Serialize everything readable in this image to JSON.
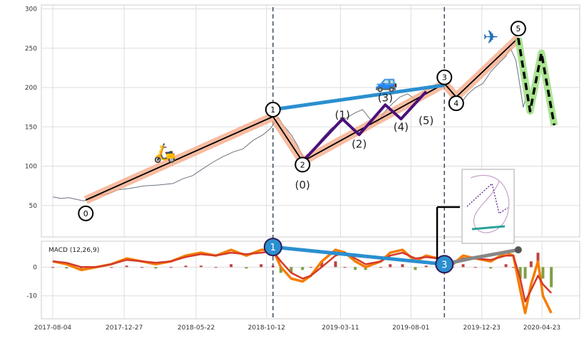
{
  "chart_data": [
    {
      "type": "line",
      "panel": "price",
      "yticks": [
        50,
        100,
        150,
        200,
        250,
        300
      ],
      "ylim": [
        10,
        305
      ],
      "grid": true,
      "series": [
        {
          "role": "price",
          "color": "#6b7280",
          "points": [
            [
              "2017-08-04",
              61
            ],
            [
              "2017-08-20",
              59
            ],
            [
              "2017-09-05",
              60
            ],
            [
              "2017-09-20",
              58
            ],
            [
              "2017-10-05",
              56
            ],
            [
              "2017-10-20",
              58
            ],
            [
              "2017-11-05",
              63
            ],
            [
              "2017-11-25",
              65
            ],
            [
              "2017-12-15",
              70
            ],
            [
              "2018-01-10",
              72
            ],
            [
              "2018-02-05",
              75
            ],
            [
              "2018-03-05",
              76
            ],
            [
              "2018-04-05",
              78
            ],
            [
              "2018-04-25",
              84
            ],
            [
              "2018-05-15",
              88
            ],
            [
              "2018-06-05",
              97
            ],
            [
              "2018-06-25",
              105
            ],
            [
              "2018-07-15",
              112
            ],
            [
              "2018-08-05",
              118
            ],
            [
              "2018-08-25",
              122
            ],
            [
              "2018-09-15",
              133
            ],
            [
              "2018-10-05",
              140
            ],
            [
              "2018-10-20",
              148
            ],
            [
              "2018-11-05",
              162
            ],
            [
              "2018-11-15",
              152
            ],
            [
              "2018-12-01",
              140
            ],
            [
              "2018-12-15",
              125
            ],
            [
              "2018-12-28",
              108
            ],
            [
              "2019-01-10",
              118
            ],
            [
              "2019-02-01",
              135
            ],
            [
              "2019-02-20",
              148
            ],
            [
              "2019-03-10",
              155
            ],
            [
              "2019-03-25",
              162
            ],
            [
              "2019-04-10",
              168
            ],
            [
              "2019-04-25",
              172
            ],
            [
              "2019-05-10",
              160
            ],
            [
              "2019-05-25",
              155
            ],
            [
              "2019-06-10",
              170
            ],
            [
              "2019-06-25",
              180
            ],
            [
              "2019-07-10",
              188
            ],
            [
              "2019-07-25",
              192
            ],
            [
              "2019-08-10",
              185
            ],
            [
              "2019-08-25",
              190
            ],
            [
              "2019-09-10",
              196
            ],
            [
              "2019-09-25",
              200
            ],
            [
              "2019-10-10",
              210
            ],
            [
              "2019-10-25",
              190
            ],
            [
              "2019-11-10",
              180
            ],
            [
              "2019-11-25",
              192
            ],
            [
              "2019-12-10",
              200
            ],
            [
              "2019-12-25",
              205
            ],
            [
              "2020-01-10",
              220
            ],
            [
              "2020-01-25",
              230
            ],
            [
              "2020-02-10",
              240
            ],
            [
              "2020-02-19",
              250
            ],
            [
              "2020-03-01",
              235
            ],
            [
              "2020-03-10",
              200
            ],
            [
              "2020-03-16",
              175
            ],
            [
              "2020-03-23",
              190
            ]
          ]
        },
        {
          "role": "elliott-wave",
          "color": "#000000",
          "halo_color": "#f4a582",
          "points": [
            [
              "2017-10-10",
              57
            ],
            [
              "2018-10-25",
              163
            ],
            [
              "2018-12-24",
              106
            ],
            [
              "2019-10-08",
              205
            ],
            [
              "2019-11-01",
              188
            ],
            [
              "2020-03-06",
              263
            ]
          ]
        },
        {
          "role": "sub-wave",
          "color": "#4b0f7a",
          "points": [
            [
              "2018-12-24",
              106
            ],
            [
              "2019-03-15",
              160
            ],
            [
              "2019-04-18",
              140
            ],
            [
              "2019-06-10",
              178
            ],
            [
              "2019-07-12",
              160
            ],
            [
              "2019-09-01",
              195
            ]
          ]
        },
        {
          "role": "divergence-link",
          "color": "#2b8fd0",
          "points": [
            [
              "2018-10-25",
              172
            ],
            [
              "2019-10-08",
              203
            ]
          ]
        },
        {
          "role": "correction-dashed",
          "color": "#000000",
          "halo_color": "#9be07f",
          "points": [
            [
              "2020-03-06",
              263
            ],
            [
              "2020-03-30",
              170
            ],
            [
              "2020-04-22",
              244
            ],
            [
              "2020-05-18",
              152
            ]
          ]
        }
      ],
      "wave_labels": [
        {
          "text": "0",
          "x": "2017-10-10",
          "y": 40,
          "circled": true
        },
        {
          "text": "1",
          "x": "2018-10-25",
          "y": 172,
          "circled": true
        },
        {
          "text": "2",
          "x": "2018-12-24",
          "y": 102,
          "circled": true
        },
        {
          "text": "3",
          "x": "2019-10-08",
          "y": 213,
          "circled": true
        },
        {
          "text": "4",
          "x": "2019-11-01",
          "y": 180,
          "circled": true
        },
        {
          "text": "5",
          "x": "2020-03-06",
          "y": 275,
          "circled": true
        },
        {
          "text": "(0)",
          "x": "2018-12-24",
          "y": 76,
          "circled": false
        },
        {
          "text": "(1)",
          "x": "2019-03-15",
          "y": 165,
          "circled": false
        },
        {
          "text": "(2)",
          "x": "2019-04-18",
          "y": 128,
          "circled": false
        },
        {
          "text": "(3)",
          "x": "2019-06-10",
          "y": 187,
          "circled": false
        },
        {
          "text": "(4)",
          "x": "2019-07-12",
          "y": 150,
          "circled": false
        },
        {
          "text": "(5)",
          "x": "2019-09-01",
          "y": 158,
          "circled": false
        }
      ],
      "icons": [
        {
          "name": "scooter-icon",
          "glyph": "🛵",
          "x": "2018-03-20",
          "y": 118
        },
        {
          "name": "car-icon",
          "glyph": "🚙",
          "x": "2019-06-12",
          "y": 208
        },
        {
          "name": "airplane-icon",
          "glyph": "✈",
          "x": "2020-01-10",
          "y": 265
        }
      ],
      "vlines": [
        "2018-10-25",
        "2019-10-08"
      ]
    },
    {
      "type": "line",
      "panel": "macd",
      "legend": "MACD (12,26,9)",
      "xticks": [
        "2017-08-04",
        "2017-12-27",
        "2018-05-22",
        "2018-10-12",
        "2019-03-11",
        "2019-08-01",
        "2019-12-23",
        "2020-04-23"
      ],
      "yticks": [
        0,
        -10
      ],
      "ylim": [
        -18,
        9
      ],
      "grid": true,
      "series": [
        {
          "role": "macd",
          "color": "#f57c00",
          "points": [
            [
              "2017-08-04",
              2
            ],
            [
              "2017-09-01",
              1
            ],
            [
              "2017-10-01",
              -1
            ],
            [
              "2017-11-01",
              0
            ],
            [
              "2017-12-01",
              1
            ],
            [
              "2018-01-01",
              3
            ],
            [
              "2018-02-01",
              2
            ],
            [
              "2018-03-01",
              1
            ],
            [
              "2018-04-01",
              2
            ],
            [
              "2018-05-01",
              4
            ],
            [
              "2018-06-01",
              5
            ],
            [
              "2018-07-01",
              4
            ],
            [
              "2018-08-01",
              6
            ],
            [
              "2018-09-01",
              4
            ],
            [
              "2018-10-01",
              6
            ],
            [
              "2018-10-25",
              6
            ],
            [
              "2018-11-10",
              0
            ],
            [
              "2018-12-01",
              -4
            ],
            [
              "2018-12-24",
              -5
            ],
            [
              "2019-01-10",
              -3
            ],
            [
              "2019-02-01",
              2
            ],
            [
              "2019-03-01",
              6
            ],
            [
              "2019-03-20",
              5
            ],
            [
              "2019-04-10",
              2
            ],
            [
              "2019-05-01",
              0
            ],
            [
              "2019-06-01",
              2
            ],
            [
              "2019-06-20",
              5
            ],
            [
              "2019-07-15",
              6
            ],
            [
              "2019-08-10",
              2
            ],
            [
              "2019-09-01",
              4
            ],
            [
              "2019-09-25",
              3
            ],
            [
              "2019-10-08",
              -2
            ],
            [
              "2019-10-25",
              1
            ],
            [
              "2019-11-15",
              4
            ],
            [
              "2019-12-10",
              3
            ],
            [
              "2020-01-10",
              2
            ],
            [
              "2020-02-10",
              5
            ],
            [
              "2020-02-25",
              4
            ],
            [
              "2020-03-10",
              -8
            ],
            [
              "2020-03-20",
              -16
            ],
            [
              "2020-04-01",
              -6
            ],
            [
              "2020-04-15",
              2
            ],
            [
              "2020-04-25",
              -10
            ],
            [
              "2020-05-12",
              -16
            ]
          ]
        },
        {
          "role": "signal",
          "color": "#d43a2a",
          "points": [
            [
              "2017-08-04",
              2
            ],
            [
              "2017-09-01",
              1.5
            ],
            [
              "2017-10-01",
              0
            ],
            [
              "2017-11-01",
              0
            ],
            [
              "2017-12-01",
              1
            ],
            [
              "2018-01-01",
              2.5
            ],
            [
              "2018-02-01",
              2
            ],
            [
              "2018-03-01",
              1.5
            ],
            [
              "2018-04-01",
              2
            ],
            [
              "2018-05-01",
              3.5
            ],
            [
              "2018-06-01",
              4.5
            ],
            [
              "2018-07-01",
              4
            ],
            [
              "2018-08-01",
              5
            ],
            [
              "2018-09-01",
              4.5
            ],
            [
              "2018-10-01",
              5
            ],
            [
              "2018-10-25",
              5.5
            ],
            [
              "2018-11-10",
              2
            ],
            [
              "2018-12-01",
              -2
            ],
            [
              "2018-12-24",
              -4
            ],
            [
              "2019-01-10",
              -3
            ],
            [
              "2019-02-01",
              0
            ],
            [
              "2019-03-01",
              4
            ],
            [
              "2019-03-20",
              5
            ],
            [
              "2019-04-10",
              3
            ],
            [
              "2019-05-01",
              1
            ],
            [
              "2019-06-01",
              2
            ],
            [
              "2019-06-20",
              4
            ],
            [
              "2019-07-15",
              5
            ],
            [
              "2019-08-10",
              3
            ],
            [
              "2019-09-01",
              3.5
            ],
            [
              "2019-09-25",
              3
            ],
            [
              "2019-10-08",
              0
            ],
            [
              "2019-10-25",
              1
            ],
            [
              "2019-11-15",
              3
            ],
            [
              "2019-12-10",
              3
            ],
            [
              "2020-01-10",
              2.5
            ],
            [
              "2020-02-10",
              4
            ],
            [
              "2020-02-25",
              4
            ],
            [
              "2020-03-10",
              -4
            ],
            [
              "2020-03-20",
              -12
            ],
            [
              "2020-04-01",
              -8
            ],
            [
              "2020-04-15",
              -3
            ],
            [
              "2020-04-25",
              -6
            ],
            [
              "2020-05-12",
              -9
            ]
          ]
        },
        {
          "role": "divergence-link",
          "color": "#2b8fd0",
          "points": [
            [
              "2018-10-25",
              7
            ],
            [
              "2019-10-08",
              1
            ]
          ]
        },
        {
          "role": "grey-link",
          "color": "#888888",
          "points": [
            [
              "2019-10-08",
              1
            ],
            [
              "2019-12-01",
              3
            ],
            [
              "2020-03-06",
              6
            ]
          ]
        }
      ],
      "hist_color_pos": "#b22222",
      "hist_color_neg": "#6b8e23",
      "markers": [
        {
          "text": "1",
          "x": "2018-10-25",
          "y": 7
        },
        {
          "text": "3",
          "x": "2019-10-08",
          "y": 1
        }
      ]
    }
  ]
}
